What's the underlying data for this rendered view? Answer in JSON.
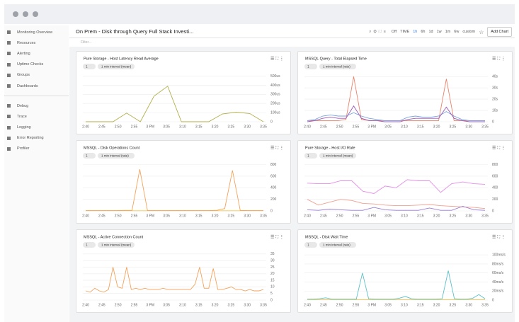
{
  "sidebar": {
    "items": [
      "Monitoring Overview",
      "Resources",
      "Alerting",
      "Uptime Checks",
      "Groups",
      "Dashboards"
    ],
    "items2": [
      "Debug",
      "Trace",
      "Logging",
      "Error Reporting",
      "Profiler"
    ]
  },
  "header": {
    "title": "On Prem - Disk through Query Full Stack Investi...",
    "refresh": "Off",
    "time_label": "TIME",
    "ranges": [
      "1h",
      "6h",
      "1d",
      "1w",
      "1m",
      "6w",
      "custom"
    ],
    "add_chart": "Add Chart",
    "filter": "Filter..."
  },
  "panels": [
    {
      "title": "Pure Storage - Host Latency Read Average",
      "badge": "1",
      "interval": "1 min interval (mean)",
      "chart": {
        "type": "line",
        "xticks": [
          "2:40",
          "2:45",
          "2:50",
          "2:55",
          "3 PM",
          "3:05",
          "3:10",
          "3:15",
          "3:20",
          "3:25",
          "3:30",
          "3:35"
        ],
        "ylim": [
          0,
          520
        ],
        "yticks": [
          0,
          {
            "value": 100,
            "label": "100us"
          },
          {
            "value": 200,
            "label": "200us"
          },
          {
            "value": 300,
            "label": "300us"
          },
          {
            "value": 400,
            "label": "400us"
          },
          {
            "value": 500,
            "label": "500us"
          }
        ],
        "series": [
          {
            "color": "#b3ae4a",
            "values": [
              0,
              0,
              0,
              95,
              0,
              280,
              390,
              0,
              0,
              0,
              85,
              105,
              90,
              0
            ]
          }
        ]
      }
    },
    {
      "title": "MSSQL Query - Total Elapsed Time",
      "badge": "1",
      "interval": "1 min interval (rate)",
      "chart": {
        "type": "line",
        "xticks": [
          "2:40",
          "2:45",
          "2:50",
          "2:55",
          "3 PM",
          "3:05",
          "3:10",
          "3:15",
          "3:20",
          "3:25",
          "3:30",
          "3:35"
        ],
        "ylim": [
          0,
          42
        ],
        "yticks": [
          0,
          {
            "value": 10,
            "label": "10s"
          },
          {
            "value": 20,
            "label": "20s"
          },
          {
            "value": 30,
            "label": "30s"
          },
          {
            "value": 40,
            "label": "40s"
          }
        ],
        "series": [
          {
            "color": "#e8836b",
            "values": [
              1,
              1,
              1,
              1,
              1,
              2,
              40,
              2,
              1,
              1,
              1,
              1,
              1,
              1,
              1,
              1,
              1,
              1,
              38,
              1,
              1,
              1,
              1,
              1
            ]
          },
          {
            "color": "#7aa3e0",
            "values": [
              1,
              2,
              5,
              6,
              5,
              5,
              8,
              5,
              3,
              2,
              1,
              1,
              1,
              4,
              5,
              4,
              4,
              5,
              9,
              5,
              2,
              1,
              1,
              1
            ]
          },
          {
            "color": "#9b59b6",
            "values": [
              0,
              1,
              3,
              4,
              3,
              3,
              14,
              3,
              1,
              1,
              0,
              0,
              0,
              2,
              3,
              3,
              3,
              3,
              13,
              3,
              1,
              0,
              0,
              0
            ]
          }
        ]
      }
    },
    {
      "title": "MSSQL - Disk Operations Count",
      "badge": "1",
      "interval": "1 min interval (rate)",
      "chart": {
        "type": "line",
        "xticks": [
          "2:40",
          "2:45",
          "2:50",
          "2:55",
          "3 PM",
          "3:05",
          "3:10",
          "3:15",
          "3:20",
          "3:25",
          "3:30",
          "3:35"
        ],
        "ylim": [
          0,
          820
        ],
        "yticks": [
          0,
          200,
          400,
          600,
          800
        ],
        "series": [
          {
            "color": "#f2c94c",
            "values": [
              2,
              2,
              2,
              2,
              2,
              2,
              2,
              2,
              2,
              2,
              2,
              2,
              2,
              2,
              2,
              2,
              2,
              2,
              2,
              2,
              2,
              2,
              2,
              2
            ]
          },
          {
            "color": "#f4a259",
            "values": [
              5,
              5,
              5,
              5,
              5,
              8,
              10,
              720,
              5,
              5,
              5,
              5,
              5,
              5,
              5,
              5,
              5,
              10,
              40,
              700,
              8,
              5,
              5,
              5
            ]
          }
        ]
      }
    },
    {
      "title": "Pure Storage - Host I/O Rate",
      "badge": "1",
      "interval": "1 min interval (mean)",
      "chart": {
        "type": "line",
        "xticks": [
          "2:40",
          "2:45",
          "2:50",
          "2:55",
          "3 PM",
          "3:05",
          "3:10",
          "3:15",
          "3:20",
          "3:25",
          "3:30",
          "3:35"
        ],
        "ylim": [
          0,
          820
        ],
        "yticks": [
          0,
          200,
          400,
          600,
          800
        ],
        "series": [
          {
            "color": "#e38ee8",
            "values": [
              480,
              470,
              470,
              520,
              520,
              340,
              300,
              430,
              400,
              540,
              520,
              520,
              320,
              470,
              500,
              470,
              460
            ]
          },
          {
            "color": "#f0a090",
            "values": [
              200,
              100,
              150,
              200,
              180,
              130,
              120,
              100,
              90,
              90,
              100,
              110,
              90,
              80,
              70,
              60,
              40
            ]
          },
          {
            "color": "#9b7fd4",
            "values": [
              20,
              10,
              30,
              20,
              10,
              10,
              60,
              20,
              10,
              10,
              10,
              50,
              10,
              10,
              80,
              20,
              10
            ]
          }
        ]
      }
    },
    {
      "title": "MSSQL - Active Connection Count",
      "badge": "1",
      "interval": "1 min interval (mean)",
      "chart": {
        "type": "line",
        "xticks": [
          "2:40",
          "2:45",
          "2:50",
          "2:55",
          "3 PM",
          "3:05",
          "3:10",
          "3:15",
          "3:20",
          "3:25",
          "3:30",
          "3:35"
        ],
        "ylim": [
          0,
          36
        ],
        "yticks": [
          0,
          5,
          10,
          15,
          20,
          25,
          30,
          35
        ],
        "series": [
          {
            "color": "#f4a259",
            "values": [
              7,
              6,
              9,
              7,
              6,
              8,
              25,
              10,
              9,
              25,
              8,
              9,
              8,
              9,
              8,
              8,
              8,
              9,
              8,
              8,
              8,
              8,
              8,
              8,
              12,
              25,
              9,
              9,
              24,
              8,
              8,
              9,
              10,
              8,
              8,
              7,
              8,
              7,
              7,
              8
            ]
          }
        ]
      }
    },
    {
      "title": "MSSQL - Disk Wait Time",
      "badge": "1",
      "interval": "1 min interval (rate)",
      "chart": {
        "type": "line",
        "xticks": [
          "2:40",
          "2:45",
          "2:50",
          "2:55",
          "3 PM",
          "3:05",
          "3:10",
          "3:15",
          "3:20",
          "3:25",
          "3:30",
          "3:35"
        ],
        "ylim": [
          0,
          105
        ],
        "yticks": [
          0,
          {
            "value": 20,
            "label": "20ms/s"
          },
          {
            "value": 40,
            "label": "40ms/s"
          },
          {
            "value": 60,
            "label": "60ms/s"
          },
          {
            "value": 80,
            "label": "80ms/s"
          },
          {
            "value": 100,
            "label": "100ms/s"
          }
        ],
        "series": [
          {
            "color": "#f2c94c",
            "values": [
              1,
              1,
              1,
              1,
              1,
              1,
              1,
              1,
              1,
              1,
              1,
              1,
              1,
              1,
              1,
              1,
              1,
              1,
              1,
              1,
              1,
              1,
              1,
              1,
              1,
              1,
              1,
              1,
              1,
              1
            ]
          },
          {
            "color": "#5bc0c8",
            "values": [
              2,
              2,
              3,
              5,
              2,
              2,
              2,
              2,
              2,
              60,
              3,
              2,
              2,
              2,
              2,
              4,
              8,
              3,
              2,
              2,
              2,
              2,
              3,
              65,
              3,
              2,
              2,
              4,
              12,
              3
            ]
          }
        ]
      }
    }
  ]
}
